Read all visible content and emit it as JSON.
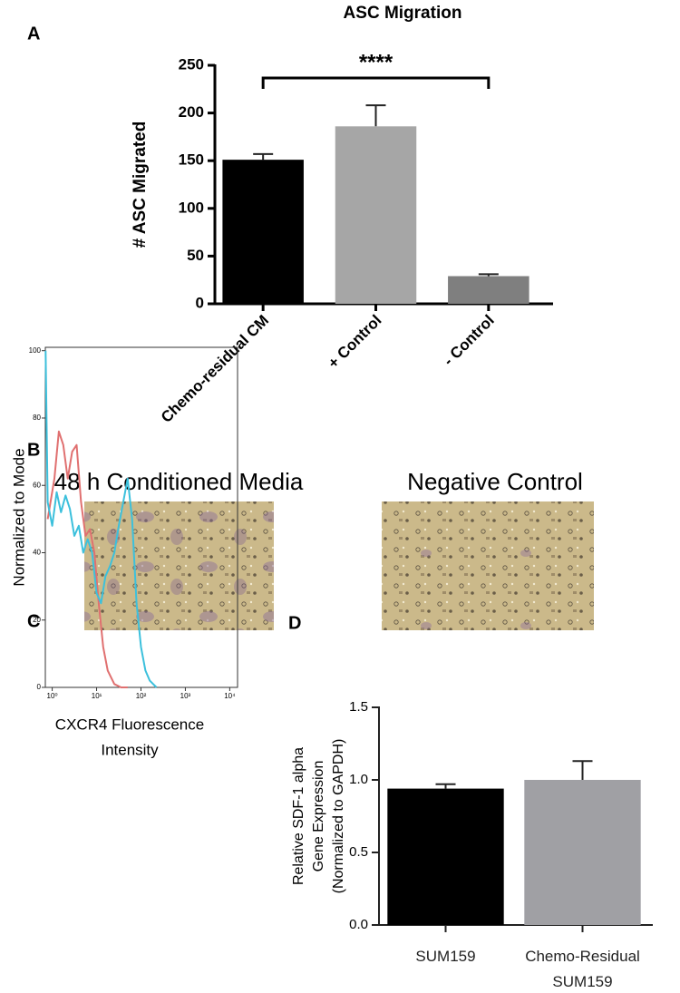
{
  "chart_data": [
    {
      "type": "bar",
      "panel_label": "A",
      "title": "ASC Migration",
      "ylabel": "# ASC Migrated",
      "categories": [
        "Chemo-residual CM",
        "+ Control",
        "- Control"
      ],
      "values": [
        151,
        186,
        29
      ],
      "errors": [
        6,
        22,
        2
      ],
      "colors": [
        "#000000",
        "#a6a6a6",
        "#7f7f7f"
      ],
      "ylim": [
        0,
        250
      ],
      "yticks": [
        0,
        50,
        100,
        150,
        200,
        250
      ],
      "annotation": "****"
    },
    {
      "type": "line",
      "panel_label": "C",
      "ylabel": "Normalized to Mode",
      "xlabel": [
        "CXCR4 Fluorescence",
        "Intensity"
      ],
      "log_x": true,
      "xlim": [
        0.7,
        15000
      ],
      "ylim": [
        0,
        101
      ],
      "xticks": [
        {
          "value": 1,
          "label": "10⁰"
        },
        {
          "value": 10,
          "label": "10¹"
        },
        {
          "value": 100,
          "label": "10²"
        },
        {
          "value": 1000,
          "label": "10³"
        },
        {
          "value": 10000,
          "label": "10⁴"
        }
      ],
      "yticks": [
        0,
        20,
        40,
        60,
        80,
        100
      ],
      "series": [
        {
          "color": "#e07070",
          "x": [
            0.79,
            1.12,
            1.41,
            1.78,
            2.24,
            2.82,
            3.55,
            4.47,
            5.62,
            7.08,
            8.91,
            11.2,
            14.1,
            17.8,
            25.1,
            35.5,
            50.1
          ],
          "values": [
            50,
            62,
            76,
            72,
            62,
            70,
            72,
            55,
            45,
            47,
            40,
            25,
            12,
            5,
            1,
            0,
            0
          ]
        },
        {
          "color": "#3cc0dc",
          "x": [
            0.71,
            0.79,
            1,
            1.26,
            1.58,
            2.0,
            2.51,
            3.16,
            3.98,
            5.01,
            6.31,
            7.94,
            10,
            12.6,
            15.8,
            20,
            25.1,
            31.6,
            39.8,
            50.1,
            63.1,
            79.4,
            100,
            126,
            158,
            224
          ],
          "values": [
            100,
            55,
            48,
            58,
            52,
            57,
            53,
            45,
            48,
            40,
            44,
            40,
            28,
            25,
            33,
            36,
            40,
            48,
            55,
            62,
            50,
            25,
            12,
            5,
            2,
            0
          ]
        }
      ]
    },
    {
      "type": "bar",
      "panel_label": "D",
      "ylabel": [
        "Relative SDF-1 alpha",
        "Gene Expression",
        "(Normalized to GAPDH)"
      ],
      "categories": [
        "SUM159",
        "Chemo-Residual SUM159"
      ],
      "values": [
        0.94,
        1.0
      ],
      "errors": [
        0.03,
        0.13
      ],
      "colors": [
        "#000000",
        "#a0a0a4"
      ],
      "ylim": [
        0,
        1.5
      ],
      "yticks": [
        {
          "value": 0,
          "label": "0.0"
        },
        0.5,
        {
          "value": 1,
          "label": "1.0"
        },
        1.5
      ]
    }
  ],
  "panel_b": {
    "label": "B",
    "captions": [
      "48 h Conditioned Media",
      "Negative Control"
    ]
  }
}
